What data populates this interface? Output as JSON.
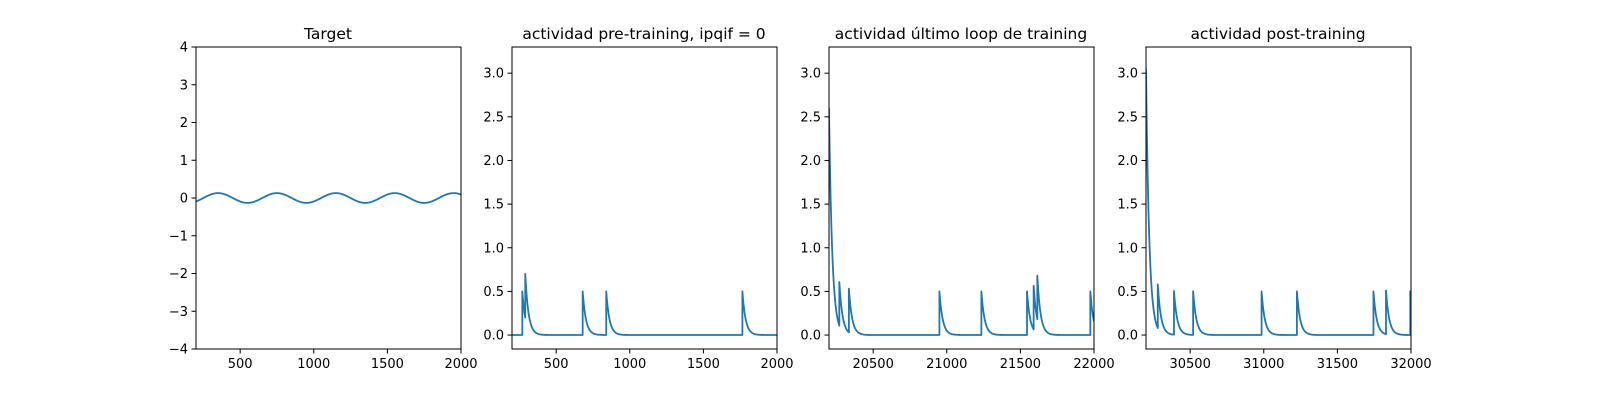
{
  "figure": {
    "background": "#ffffff",
    "line_color": "#1f77b4"
  },
  "chart_data": [
    {
      "type": "line",
      "title": "Target",
      "xlabel": "",
      "ylabel": "",
      "xlim": [
        200,
        2000
      ],
      "ylim": [
        -4,
        4
      ],
      "xticks": [
        500,
        1000,
        1500,
        2000
      ],
      "yticks": [
        -4,
        -3,
        -2,
        -1,
        0,
        1,
        2,
        3,
        4
      ],
      "grid": false,
      "series": [
        {
          "kind": "sine",
          "amplitude": 0.13,
          "period": 400,
          "peak_at": 350,
          "x_start": 200,
          "x_end": 2000
        }
      ]
    },
    {
      "type": "line",
      "title": "actividad pre-training, ipqif = 0",
      "xlabel": "",
      "ylabel": "",
      "xlim": [
        200,
        2000
      ],
      "ylim": [
        -0.16,
        3.3
      ],
      "xticks": [
        500,
        1000,
        1500,
        2000
      ],
      "yticks": [
        0.0,
        0.5,
        1.0,
        1.5,
        2.0,
        2.5,
        3.0
      ],
      "grid": false,
      "series": [
        {
          "kind": "spike_train",
          "x_start": 200,
          "x_end": 2000,
          "tau": 22,
          "spikes": [
            {
              "x": 270,
              "amp": 0.5
            },
            {
              "x": 290,
              "amp": 0.5
            },
            {
              "x": 680,
              "amp": 0.5
            },
            {
              "x": 840,
              "amp": 0.5
            },
            {
              "x": 1765,
              "amp": 0.5
            }
          ]
        }
      ]
    },
    {
      "type": "line",
      "title": "actividad último loop de training",
      "xlabel": "",
      "ylabel": "",
      "xlim": [
        20200,
        22000
      ],
      "ylim": [
        -0.16,
        3.3
      ],
      "xticks": [
        20500,
        21000,
        21500,
        22000
      ],
      "yticks": [
        0.0,
        0.5,
        1.0,
        1.5,
        2.0,
        2.5,
        3.0
      ],
      "grid": false,
      "series": [
        {
          "kind": "spike_train",
          "x_start": 20200,
          "x_end": 22000,
          "tau": 22,
          "initial": 2.6,
          "spikes": [
            {
              "x": 20270,
              "amp": 0.5
            },
            {
              "x": 20335,
              "amp": 0.5
            },
            {
              "x": 20950,
              "amp": 0.5
            },
            {
              "x": 21235,
              "amp": 0.5
            },
            {
              "x": 21545,
              "amp": 0.5
            },
            {
              "x": 21590,
              "amp": 0.5
            },
            {
              "x": 21615,
              "amp": 0.5
            },
            {
              "x": 21975,
              "amp": 0.5
            }
          ]
        }
      ]
    },
    {
      "type": "line",
      "title": "actividad post-training",
      "xlabel": "",
      "ylabel": "",
      "xlim": [
        30200,
        32000
      ],
      "ylim": [
        -0.16,
        3.3
      ],
      "xticks": [
        30500,
        31000,
        31500,
        32000
      ],
      "yticks": [
        0.0,
        0.5,
        1.0,
        1.5,
        2.0,
        2.5,
        3.0
      ],
      "grid": false,
      "series": [
        {
          "kind": "spike_train",
          "x_start": 30200,
          "x_end": 32000,
          "tau": 22,
          "initial": 3.05,
          "spikes": [
            {
              "x": 30280,
              "amp": 0.5
            },
            {
              "x": 30390,
              "amp": 0.5
            },
            {
              "x": 30520,
              "amp": 0.5
            },
            {
              "x": 30985,
              "amp": 0.5
            },
            {
              "x": 31225,
              "amp": 0.5
            },
            {
              "x": 31745,
              "amp": 0.5
            },
            {
              "x": 31830,
              "amp": 0.5
            },
            {
              "x": 31995,
              "amp": 0.5
            }
          ]
        }
      ]
    }
  ]
}
